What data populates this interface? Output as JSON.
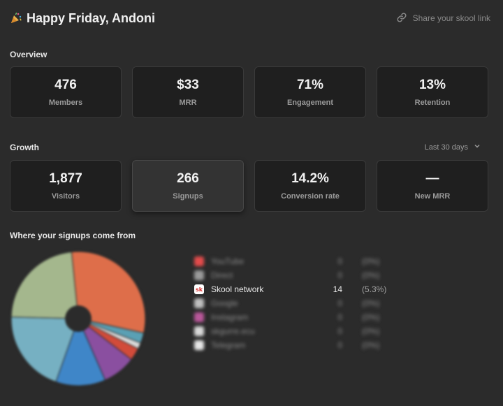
{
  "header": {
    "title": "Happy Friday, Andoni",
    "share_label": "Share your skool link"
  },
  "overview": {
    "title": "Overview",
    "cards": [
      {
        "value": "476",
        "label": "Members"
      },
      {
        "value": "$33",
        "label": "MRR"
      },
      {
        "value": "71%",
        "label": "Engagement"
      },
      {
        "value": "13%",
        "label": "Retention"
      }
    ]
  },
  "growth": {
    "title": "Growth",
    "range": "Last 30 days",
    "cards": [
      {
        "value": "1,877",
        "label": "Visitors"
      },
      {
        "value": "266",
        "label": "Signups"
      },
      {
        "value": "14.2%",
        "label": "Conversion rate"
      },
      {
        "value": "—",
        "label": "New MRR"
      }
    ]
  },
  "sources": {
    "title": "Where your signups come from",
    "items": [
      {
        "name": "YouTube",
        "count": "0",
        "pct": "(0%)"
      },
      {
        "name": "Direct",
        "count": "0",
        "pct": "(0%)"
      },
      {
        "name": "Skool network",
        "count": "14",
        "pct": "(5.3%)"
      },
      {
        "name": "Google",
        "count": "0",
        "pct": "(0%)"
      },
      {
        "name": "Instagram",
        "count": "0",
        "pct": "(0%)"
      },
      {
        "name": "skgurre.ecu",
        "count": "0",
        "pct": "(0%)"
      },
      {
        "name": "Telegram",
        "count": "0",
        "pct": "(0%)"
      }
    ]
  },
  "chart_data": {
    "type": "pie",
    "donut": true,
    "slices": [
      {
        "color": "#de6e4a",
        "value": 30
      },
      {
        "color": "#5aa0b4",
        "value": 2.5
      },
      {
        "color": "#d9d9d9",
        "value": 1.5
      },
      {
        "color": "#d24b3a",
        "value": 3
      },
      {
        "color": "#8a4fa0",
        "value": 8
      },
      {
        "color": "#3f86c8",
        "value": 12
      },
      {
        "color": "#76b0c2",
        "value": 20
      },
      {
        "color": "#a4b78d",
        "value": 23
      }
    ]
  },
  "colors": {
    "accent": "#e06c4a",
    "background": "#2b2b2b",
    "card": "#1f1f1f"
  }
}
